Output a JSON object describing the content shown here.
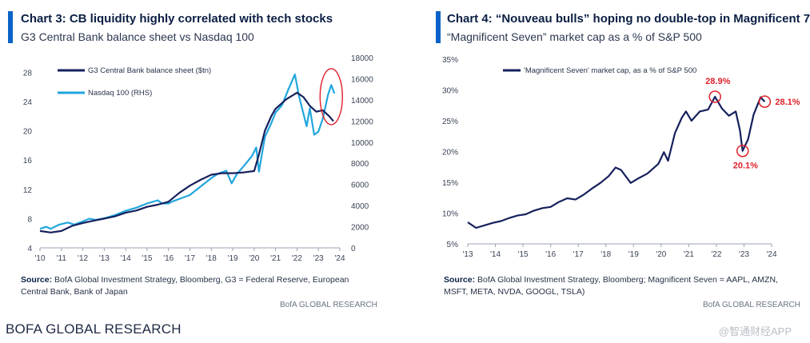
{
  "footer_brand": "BOFA GLOBAL RESEARCH",
  "watermark": "@智通财经APP",
  "colors": {
    "navy": "#16205c",
    "light_blue": "#21a6dd",
    "accent": "#0a63c8",
    "red": "#e0202a"
  },
  "chart_data": [
    {
      "type": "line",
      "title": "Chart 3: CB liquidity highly correlated with tech stocks",
      "subtitle": "G3 Central Bank balance sheet vs Nasdaq 100",
      "x_ticks": [
        "'10",
        "'11",
        "'12",
        "'13",
        "'14",
        "'15",
        "'16",
        "'17",
        "'18",
        "'19",
        "'20",
        "'21",
        "'22",
        "'23",
        "'24"
      ],
      "x_range": [
        2010,
        2024
      ],
      "y_left_ticks": [
        "4",
        "8",
        "12",
        "16",
        "20",
        "24",
        "28"
      ],
      "y_left_range": [
        4,
        30
      ],
      "y_right_ticks": [
        "0",
        "2000",
        "4000",
        "6000",
        "8000",
        "10000",
        "12000",
        "14000",
        "16000",
        "18000"
      ],
      "y_right_range": [
        0,
        18000
      ],
      "series": [
        {
          "name": "G3 Central Bank balance sheet ($tn)",
          "axis": "left",
          "color": "#16205c",
          "points": [
            [
              2010.0,
              6.3
            ],
            [
              2010.5,
              6.1
            ],
            [
              2011.0,
              6.3
            ],
            [
              2011.5,
              7.0
            ],
            [
              2012.0,
              7.4
            ],
            [
              2012.5,
              7.7
            ],
            [
              2013.0,
              8.0
            ],
            [
              2013.5,
              8.3
            ],
            [
              2014.0,
              8.8
            ],
            [
              2014.5,
              9.1
            ],
            [
              2015.0,
              9.6
            ],
            [
              2015.5,
              9.9
            ],
            [
              2016.0,
              10.3
            ],
            [
              2016.5,
              11.5
            ],
            [
              2017.0,
              12.5
            ],
            [
              2017.5,
              13.3
            ],
            [
              2018.0,
              14.0
            ],
            [
              2018.5,
              14.2
            ],
            [
              2019.0,
              14.2
            ],
            [
              2019.5,
              14.3
            ],
            [
              2020.0,
              14.5
            ],
            [
              2020.2,
              16.5
            ],
            [
              2020.5,
              20.0
            ],
            [
              2020.8,
              22.0
            ],
            [
              2021.0,
              23.0
            ],
            [
              2021.5,
              24.3
            ],
            [
              2022.0,
              25.2
            ],
            [
              2022.3,
              24.6
            ],
            [
              2022.6,
              23.4
            ],
            [
              2022.9,
              22.6
            ],
            [
              2023.2,
              22.8
            ],
            [
              2023.5,
              22.0
            ],
            [
              2023.7,
              21.3
            ]
          ]
        },
        {
          "name": "Nasdaq 100 (RHS)",
          "axis": "right",
          "color": "#21a6dd",
          "points": [
            [
              2010.0,
              1800
            ],
            [
              2010.3,
              2000
            ],
            [
              2010.5,
              1800
            ],
            [
              2010.9,
              2200
            ],
            [
              2011.3,
              2400
            ],
            [
              2011.6,
              2200
            ],
            [
              2012.0,
              2500
            ],
            [
              2012.3,
              2750
            ],
            [
              2012.6,
              2650
            ],
            [
              2013.0,
              2800
            ],
            [
              2013.5,
              3100
            ],
            [
              2014.0,
              3500
            ],
            [
              2014.5,
              3800
            ],
            [
              2015.0,
              4200
            ],
            [
              2015.5,
              4500
            ],
            [
              2015.7,
              4200
            ],
            [
              2016.0,
              4200
            ],
            [
              2016.2,
              4400
            ],
            [
              2016.6,
              4700
            ],
            [
              2017.0,
              5000
            ],
            [
              2017.5,
              5800
            ],
            [
              2018.0,
              6600
            ],
            [
              2018.3,
              7000
            ],
            [
              2018.7,
              7300
            ],
            [
              2018.95,
              6100
            ],
            [
              2019.2,
              7000
            ],
            [
              2019.5,
              7700
            ],
            [
              2019.9,
              8700
            ],
            [
              2020.1,
              9500
            ],
            [
              2020.22,
              7200
            ],
            [
              2020.5,
              10500
            ],
            [
              2020.8,
              11800
            ],
            [
              2021.0,
              12800
            ],
            [
              2021.3,
              13500
            ],
            [
              2021.6,
              15000
            ],
            [
              2021.9,
              16400
            ],
            [
              2022.1,
              14300
            ],
            [
              2022.45,
              11500
            ],
            [
              2022.6,
              13200
            ],
            [
              2022.8,
              10700
            ],
            [
              2023.0,
              11000
            ],
            [
              2023.2,
              12200
            ],
            [
              2023.45,
              14500
            ],
            [
              2023.6,
              15400
            ],
            [
              2023.75,
              14600
            ]
          ]
        }
      ],
      "legend": [
        "G3 Central Bank balance sheet ($tn)",
        "Nasdaq 100 (RHS)"
      ],
      "source_label": "Source:",
      "source_text": "BofA Global Investment Strategy, Bloomberg, G3 = Federal Reserve, European Central Bank, Bank of Japan",
      "brand": "BofA GLOBAL RESEARCH"
    },
    {
      "type": "line",
      "title": "Chart 4: “Nouveau bulls” hoping no double-top in Magnificent 7",
      "subtitle": "“Magnificent Seven” market cap as a % of S&P 500",
      "x_ticks": [
        "'13",
        "'14",
        "'15",
        "'16",
        "'17",
        "'18",
        "'19",
        "'20",
        "'21",
        "'22",
        "'23",
        "'24"
      ],
      "x_range": [
        2013,
        2024
      ],
      "y_ticks": [
        "5%",
        "10%",
        "15%",
        "20%",
        "25%",
        "30%",
        "35%"
      ],
      "y_range": [
        5,
        35
      ],
      "series": [
        {
          "name": "'Magnificent Seven' market cap, as a % of S&P 500",
          "color": "#16205c",
          "points": [
            [
              2013.0,
              8.5
            ],
            [
              2013.3,
              7.6
            ],
            [
              2013.6,
              8.0
            ],
            [
              2013.9,
              8.4
            ],
            [
              2014.2,
              8.7
            ],
            [
              2014.5,
              9.2
            ],
            [
              2014.8,
              9.6
            ],
            [
              2015.1,
              9.8
            ],
            [
              2015.4,
              10.4
            ],
            [
              2015.7,
              10.8
            ],
            [
              2016.0,
              11.0
            ],
            [
              2016.3,
              11.8
            ],
            [
              2016.6,
              12.4
            ],
            [
              2016.9,
              12.2
            ],
            [
              2017.2,
              13.0
            ],
            [
              2017.5,
              14.0
            ],
            [
              2017.8,
              14.9
            ],
            [
              2018.1,
              16.0
            ],
            [
              2018.35,
              17.4
            ],
            [
              2018.55,
              17.0
            ],
            [
              2018.9,
              14.9
            ],
            [
              2019.2,
              15.7
            ],
            [
              2019.5,
              16.4
            ],
            [
              2019.9,
              18.0
            ],
            [
              2020.1,
              19.9
            ],
            [
              2020.25,
              18.5
            ],
            [
              2020.5,
              23.0
            ],
            [
              2020.75,
              25.5
            ],
            [
              2020.9,
              26.5
            ],
            [
              2021.1,
              25.0
            ],
            [
              2021.4,
              26.5
            ],
            [
              2021.7,
              26.8
            ],
            [
              2021.95,
              28.9
            ],
            [
              2022.2,
              27.0
            ],
            [
              2022.45,
              25.8
            ],
            [
              2022.7,
              26.5
            ],
            [
              2022.85,
              23.5
            ],
            [
              2022.95,
              20.1
            ],
            [
              2023.15,
              22.0
            ],
            [
              2023.35,
              26.0
            ],
            [
              2023.6,
              28.8
            ],
            [
              2023.75,
              28.1
            ]
          ]
        }
      ],
      "annotations": [
        {
          "label": "28.9%",
          "x": 2021.95,
          "y": 28.9
        },
        {
          "label": "20.1%",
          "x": 2022.95,
          "y": 20.1
        },
        {
          "label": "28.1%",
          "x": 2023.75,
          "y": 28.1
        }
      ],
      "legend": [
        "'Magnificent Seven' market cap, as a % of S&P 500"
      ],
      "source_label": "Source:",
      "source_text": "BofA Global Investment Strategy, Bloomberg; Magnificent Seven = AAPL, AMZN, MSFT, META, NVDA,  GOOGL, TSLA)",
      "brand": "BofA GLOBAL RESEARCH"
    }
  ]
}
